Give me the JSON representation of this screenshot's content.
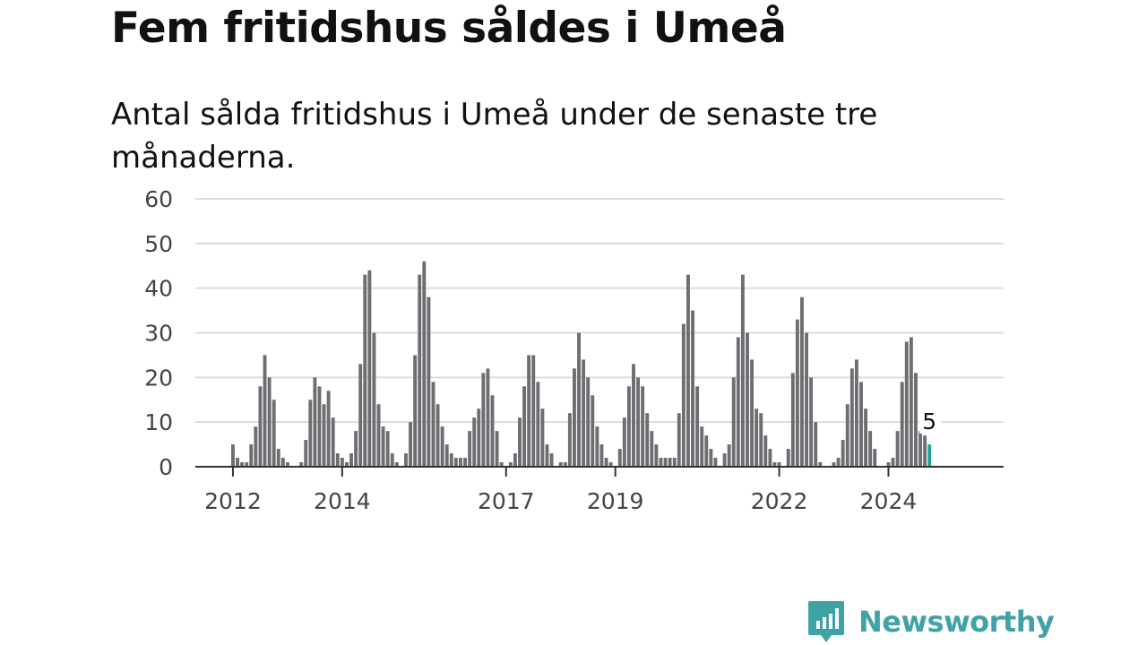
{
  "header": {
    "title": "Fem fritidshus såldes i Umeå",
    "subtitle": "Antal sålda fritidshus i Umeå under de senaste tre månaderna."
  },
  "chart_data": {
    "type": "bar",
    "title": "Fem fritidshus såldes i Umeå",
    "subtitle": "Antal sålda fritidshus i Umeå under de senaste tre månaderna.",
    "xlabel": "",
    "ylabel": "",
    "ylim": [
      0,
      60
    ],
    "yticks": [
      0,
      10,
      20,
      30,
      40,
      50,
      60
    ],
    "xtick_labels": [
      "2012",
      "2014",
      "2017",
      "2019",
      "2022",
      "2024"
    ],
    "grid": true,
    "colors": {
      "bar": "#6e6d72",
      "highlight": "#22a59b",
      "grid": "#dcdcdc",
      "axis": "#333333"
    },
    "series": [
      {
        "start": "2012-01",
        "values": [
          5,
          2,
          1,
          1,
          5,
          9,
          18,
          25,
          20,
          15,
          4,
          2,
          1,
          0,
          0,
          1,
          6,
          15,
          20,
          18,
          14,
          17,
          11,
          3,
          2,
          1,
          3,
          8,
          23,
          43,
          44,
          30,
          14,
          9,
          8,
          3,
          1,
          0,
          3,
          10,
          25,
          43,
          46,
          38,
          19,
          14,
          9,
          5,
          3,
          2,
          2,
          2,
          8,
          11,
          13,
          21,
          22,
          16,
          8,
          1,
          0,
          1,
          3,
          11,
          18,
          25,
          25,
          19,
          13,
          5,
          3,
          0,
          1,
          1,
          12,
          22,
          30,
          24,
          20,
          16,
          9,
          5,
          2,
          1,
          0,
          4,
          11,
          18,
          23,
          20,
          18,
          12,
          8,
          5,
          2,
          2,
          2,
          2,
          12,
          32,
          43,
          35,
          18,
          9,
          7,
          4,
          2,
          0,
          3,
          5,
          20,
          29,
          43,
          30,
          24,
          13,
          12,
          7,
          4,
          1,
          1,
          0,
          4,
          21,
          33,
          38,
          30,
          20,
          10,
          1,
          0,
          0,
          1,
          2,
          6,
          14,
          22,
          24,
          19,
          13,
          8,
          4,
          0,
          0,
          1,
          2,
          8,
          19,
          28,
          29,
          21,
          8,
          7,
          5
        ]
      }
    ],
    "highlight_value": 5,
    "annotations": [
      {
        "text": "5"
      }
    ]
  },
  "brand": {
    "name": "Newsworthy",
    "icon": "newsworthy-logo-icon",
    "color": "#3fa3a6"
  }
}
